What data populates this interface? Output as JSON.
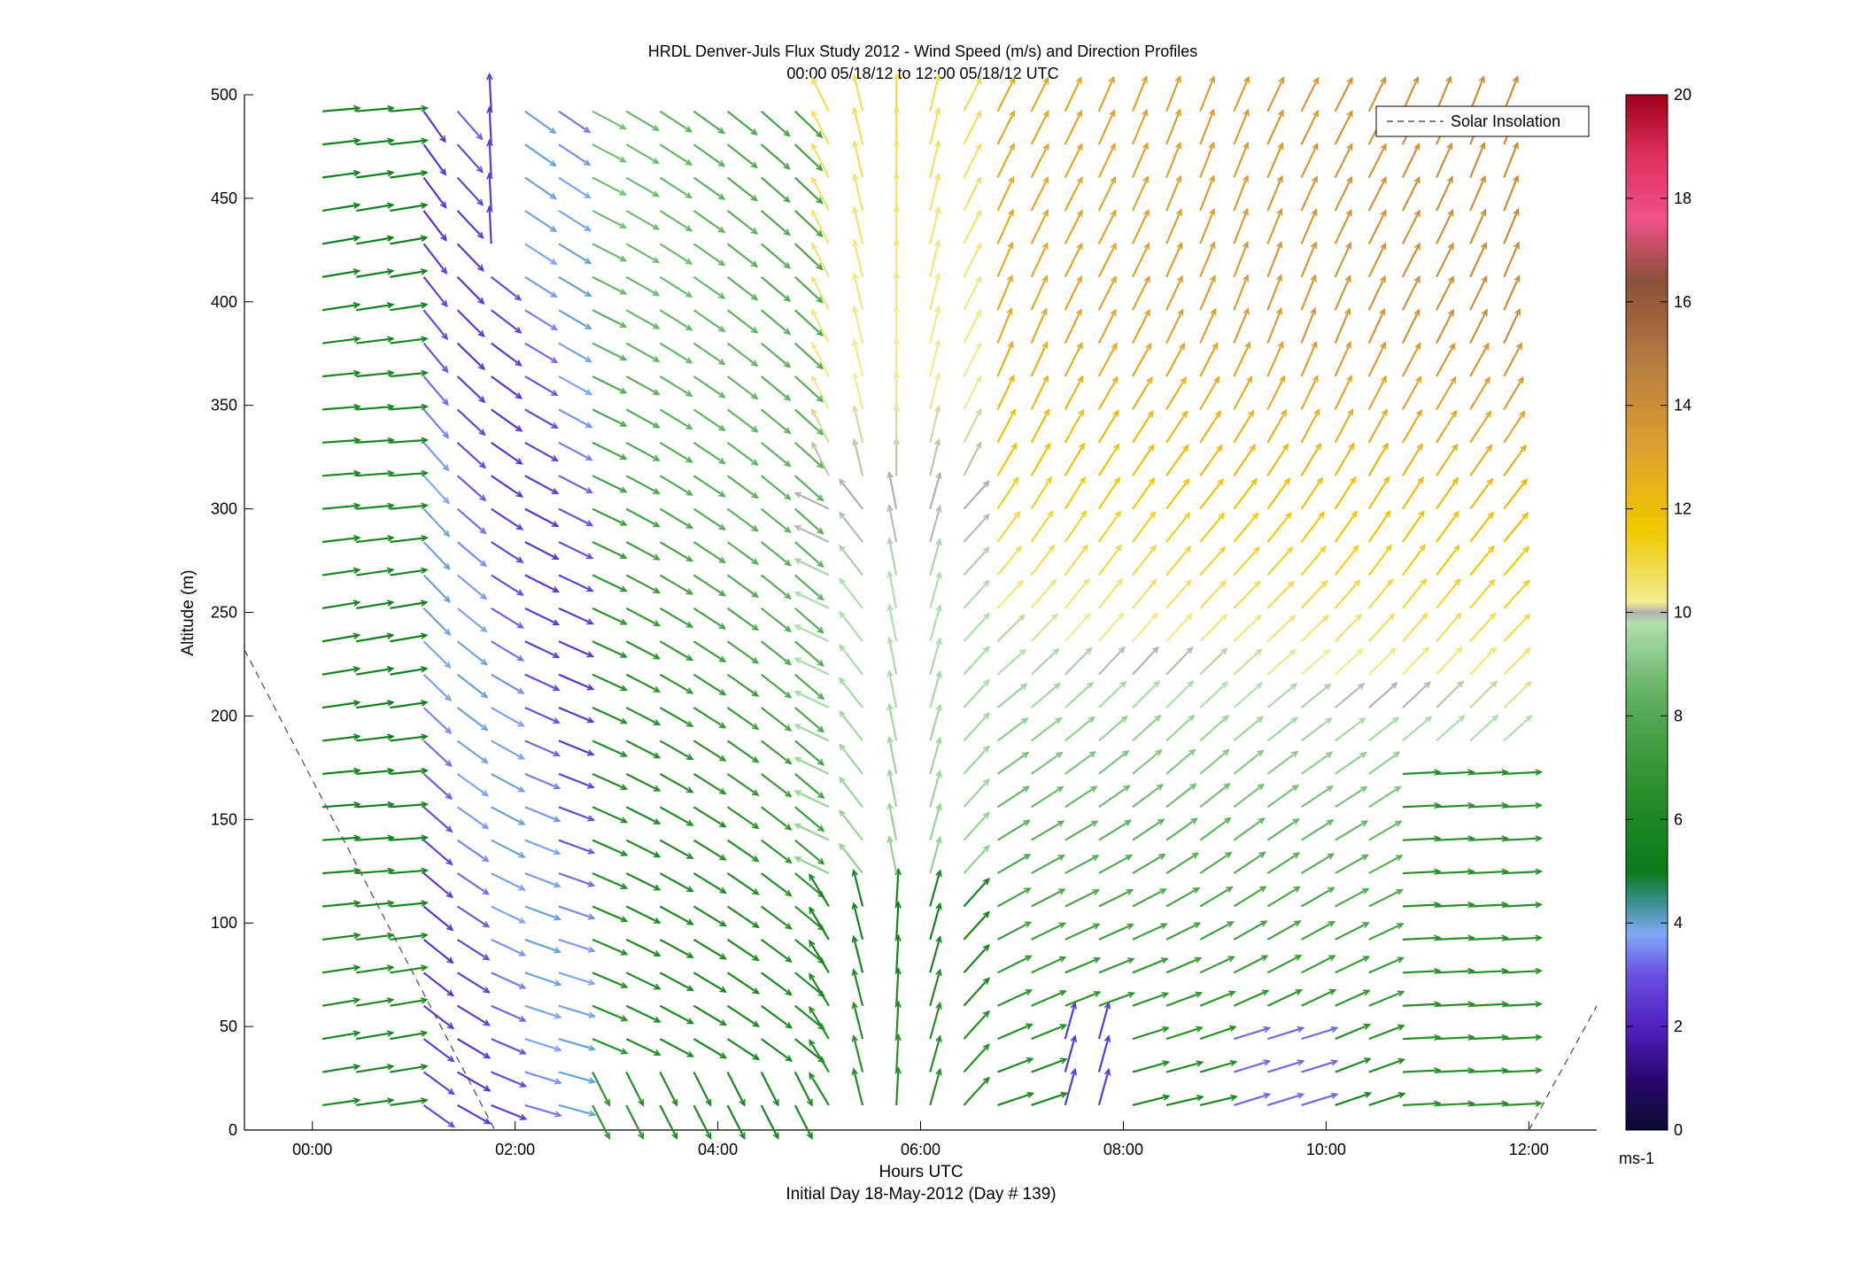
{
  "chart_data": {
    "type": "quiver",
    "title": "HRDL Denver-Juls Flux Study 2012 - Wind Speed (m/s) and Direction Profiles",
    "subtitle": "00:00 05/18/12 to 12:00 05/18/12  UTC",
    "xlabel": "Hours UTC",
    "xlabel2": "Initial Day 18-May-2012 (Day # 139)",
    "ylabel": "Altitude (m)",
    "x_ticks": [
      {
        "value": 0,
        "label": "00:00"
      },
      {
        "value": 2,
        "label": "02:00"
      },
      {
        "value": 4,
        "label": "04:00"
      },
      {
        "value": 6,
        "label": "06:00"
      },
      {
        "value": 8,
        "label": "08:00"
      },
      {
        "value": 10,
        "label": "10:00"
      },
      {
        "value": 12,
        "label": "12:00"
      }
    ],
    "y_ticks": [
      {
        "value": 0,
        "label": "0"
      },
      {
        "value": 50,
        "label": "50"
      },
      {
        "value": 100,
        "label": "100"
      },
      {
        "value": 150,
        "label": "150"
      },
      {
        "value": 200,
        "label": "200"
      },
      {
        "value": 250,
        "label": "250"
      },
      {
        "value": 300,
        "label": "300"
      },
      {
        "value": 350,
        "label": "350"
      },
      {
        "value": 400,
        "label": "400"
      },
      {
        "value": 450,
        "label": "450"
      },
      {
        "value": 500,
        "label": "500"
      }
    ],
    "xlim": [
      -0.67,
      12.67
    ],
    "ylim": [
      0,
      500
    ],
    "grid": false,
    "colorbar": {
      "range": [
        0,
        20
      ],
      "ticks": [
        "0",
        "2",
        "4",
        "6",
        "8",
        "10",
        "12",
        "14",
        "16",
        "18",
        "20"
      ],
      "unit_label": "ms-1",
      "placement": "right"
    },
    "legend": {
      "placement": "top-right",
      "entries": [
        {
          "name": "Solar Insolation",
          "style": "dashed",
          "color": "#555555"
        }
      ]
    },
    "series": [
      {
        "name": "Solar Insolation",
        "type": "line",
        "style": "dashed",
        "segments": [
          [
            [
              -0.67,
              232
            ],
            [
              1.8,
              0
            ]
          ],
          [
            [
              12.0,
              0
            ],
            [
              12.67,
              60
            ]
          ]
        ]
      }
    ],
    "wind_field": {
      "hours_start": 0.1,
      "hours_end": 11.8,
      "hours_step": 0.333,
      "altitude_start": 12,
      "altitude_end": 500,
      "altitude_step": 16,
      "description_regimes": [
        {
          "hours": [
            0.0,
            1.0
          ],
          "speed_ms": 6,
          "direction": "from west (arrows pointing east)"
        },
        {
          "hours": [
            1.0,
            2.5
          ],
          "speed_ms": 3,
          "direction": "from northwest"
        },
        {
          "hours": [
            2.5,
            5.0
          ],
          "speed_ms": 7,
          "direction": "from northwest"
        },
        {
          "hours": [
            5.0,
            6.5
          ],
          "speed_ms": 9,
          "direction": "convergent, from south near 250 m"
        },
        {
          "hours": [
            6.5,
            12.0
          ],
          "speed_ms": 12,
          "direction": "from southwest aloft, west near surface"
        }
      ]
    }
  }
}
